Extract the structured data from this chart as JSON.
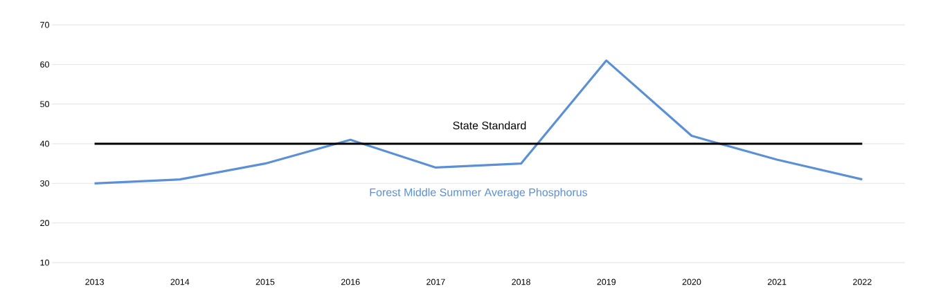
{
  "chart_data": {
    "type": "line",
    "categories": [
      "2013",
      "2014",
      "2015",
      "2016",
      "2017",
      "2018",
      "2019",
      "2020",
      "2021",
      "2022"
    ],
    "series": [
      {
        "name": "Forest Middle Summer Average Phosphorus",
        "color": "#5b8fd6",
        "values": [
          30,
          31,
          35,
          41,
          34,
          35,
          61,
          42,
          36,
          31
        ]
      }
    ],
    "ref_lines": [
      {
        "axis": "y",
        "value": 40,
        "label": "State Standard",
        "color": "#000000"
      }
    ],
    "ylim": [
      10,
      70
    ],
    "yticks": [
      10,
      20,
      30,
      40,
      50,
      60,
      70
    ],
    "grid": "y",
    "marker": "none",
    "line_style": "solid"
  }
}
